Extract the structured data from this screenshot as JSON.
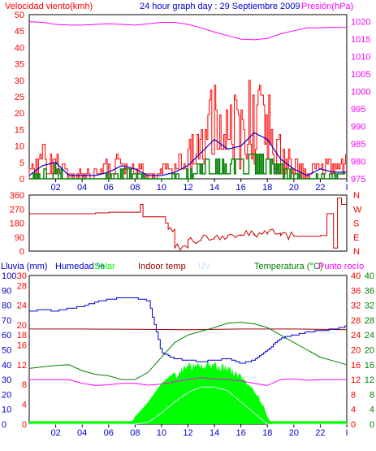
{
  "colors": {
    "wind": "#ff0000",
    "gust_avg": "#0000cc",
    "wind_green": "#008000",
    "pressure": "#ff00ff",
    "direction": "#cc0000",
    "humidity": "#0000cc",
    "solar": "#00ff00",
    "indoor": "#990000",
    "uv": "#c0e0ff",
    "temperature": "#008000",
    "dewpoint": "#ff00ff",
    "rain": "#0000ff",
    "grid": "#000000",
    "text_red": "#ff0000",
    "text_blue": "#0000cc",
    "text_green": "#008000",
    "text_magenta": "#ff00ff"
  },
  "chart_data": [
    {
      "type": "line",
      "panel": "wind_pressure",
      "header": {
        "left": "Velocidad viento(kmh)",
        "center": "24 hour graph day : 29 Septiembre 2009",
        "right": "Presión(hPa)"
      },
      "x_ticks": [
        "02",
        "04",
        "06",
        "08",
        "10",
        "12",
        "14",
        "16",
        "18",
        "20",
        "22",
        "I"
      ],
      "y_left_ticks": [
        "50",
        "45",
        "40",
        "35",
        "30",
        "25",
        "20",
        "15",
        "10",
        "5",
        "0"
      ],
      "y_right_ticks": [
        "1020",
        "1015",
        "1010",
        "1005",
        "1000",
        "995",
        "990",
        "985",
        "980",
        "975"
      ],
      "ylim_left": [
        0,
        50
      ],
      "ylim_right": [
        975,
        1022
      ],
      "xlim": [
        0,
        24
      ],
      "series": [
        {
          "key": "pressure",
          "axis": "right",
          "x": [
            0,
            1,
            2,
            3,
            4,
            5,
            6,
            7,
            8,
            9,
            10,
            11,
            12,
            13,
            14,
            15,
            16,
            17,
            18,
            19,
            20,
            21,
            22,
            23,
            24
          ],
          "values": [
            1020,
            1019.8,
            1019.2,
            1019,
            1019,
            1019.2,
            1019.4,
            1019.2,
            1019,
            1019.4,
            1019.8,
            1019.8,
            1019.2,
            1018.2,
            1017,
            1016,
            1015,
            1014.8,
            1015.2,
            1016.5,
            1017.4,
            1018.2,
            1018.2,
            1018.4,
            1018.3
          ]
        },
        {
          "key": "wind",
          "axis": "left",
          "x": [
            0,
            1,
            2,
            3,
            4,
            5,
            6,
            7,
            8,
            9,
            10,
            11,
            12,
            13,
            14,
            15,
            16,
            17,
            18,
            19,
            20,
            21,
            22,
            23,
            24
          ],
          "values": [
            3,
            9,
            7,
            2,
            2,
            2,
            5,
            7,
            5,
            3,
            3,
            5,
            9,
            17,
            27,
            19,
            21,
            26,
            22,
            10,
            6,
            2,
            6,
            5,
            7
          ]
        },
        {
          "key": "gust_avg",
          "axis": "left",
          "x": [
            0,
            1,
            2,
            3,
            4,
            5,
            6,
            7,
            8,
            9,
            10,
            11,
            12,
            13,
            14,
            15,
            16,
            17,
            18,
            19,
            20,
            21,
            22,
            23,
            24
          ],
          "values": [
            1,
            4,
            5,
            1,
            1,
            1,
            2,
            4,
            3,
            1,
            1,
            2,
            4,
            8,
            12,
            9,
            10,
            14,
            12,
            6,
            3,
            1,
            3,
            2,
            2
          ]
        },
        {
          "key": "wind_green",
          "axis": "left",
          "x": [
            0,
            1,
            2,
            3,
            4,
            5,
            6,
            7,
            8,
            9,
            10,
            11,
            12,
            13,
            14,
            15,
            16,
            17,
            18,
            19,
            20,
            21,
            22,
            23,
            24
          ],
          "values": [
            0,
            3,
            4,
            0,
            0,
            0,
            1,
            3,
            2,
            0,
            0,
            1,
            3,
            5,
            6,
            5,
            6,
            8,
            6,
            4,
            2,
            0,
            2,
            1,
            2
          ]
        }
      ]
    },
    {
      "type": "line",
      "panel": "wind_direction",
      "y_ticks": [
        "360",
        "270",
        "180",
        "90",
        "0"
      ],
      "y_right_labels": [
        "N",
        "W",
        "S",
        "E",
        "N"
      ],
      "ylim": [
        0,
        360
      ],
      "xlim": [
        0,
        24
      ],
      "series": [
        {
          "key": "direction",
          "x": [
            0,
            5,
            6,
            7,
            8.2,
            8.4,
            8.6,
            9,
            10,
            10.3,
            10.5,
            11,
            12,
            13,
            14,
            15,
            16,
            17,
            18,
            19,
            20,
            21,
            22,
            22.5,
            23,
            23.3,
            23.6,
            24
          ],
          "values": [
            240,
            245,
            250,
            250,
            250,
            300,
            220,
            220,
            220,
            180,
            140,
            20,
            70,
            80,
            90,
            100,
            105,
            110,
            115,
            100,
            95,
            95,
            100,
            240,
            20,
            340,
            300,
            300
          ]
        }
      ]
    },
    {
      "type": "line",
      "panel": "temperature_humidity",
      "header": {
        "rain": "Lluvia (mm)",
        "humidity": "Humedad %",
        "solar": "Solar",
        "indoor": "Indoor temp",
        "uv": "UV",
        "temperature": "Temperatura (°C)",
        "dewpoint": "Punto rocío"
      },
      "x_ticks": [
        "02",
        "04",
        "06",
        "08",
        "10",
        "12",
        "14",
        "16",
        "18",
        "20",
        "22",
        "I"
      ],
      "y_rain_ticks": [
        "30",
        "28",
        "24",
        "20",
        "18",
        "16",
        "12",
        "8",
        "4",
        "0"
      ],
      "y_hum_ticks": [
        "100",
        "90",
        "80",
        "70",
        "60",
        "50",
        "40",
        "30",
        "20",
        "10",
        "0"
      ],
      "y_ind_ticks": [
        "40",
        "36",
        "32",
        "28",
        "24",
        "20",
        "16",
        "12",
        "8",
        "4",
        "0"
      ],
      "y_temp_ticks": [
        "40",
        "36",
        "32",
        "28",
        "24",
        "20",
        "16",
        "12",
        "8",
        "4",
        "0"
      ],
      "ylim_humidity": [
        0,
        100
      ],
      "ylim_temp": [
        0,
        40
      ],
      "xlim": [
        0,
        24
      ],
      "series": [
        {
          "key": "humidity",
          "axis": "humidity",
          "x": [
            0,
            1,
            2,
            3,
            4,
            5,
            6,
            7,
            8,
            9,
            10,
            11,
            12,
            13,
            14,
            15,
            16,
            17,
            18,
            19,
            20,
            21,
            22,
            23,
            24
          ],
          "values": [
            76,
            77,
            76,
            78,
            79,
            82,
            84,
            85,
            85,
            83,
            48,
            44,
            43,
            42,
            43,
            44,
            41,
            43,
            50,
            58,
            60,
            62,
            63,
            64,
            66
          ]
        },
        {
          "key": "temperature",
          "axis": "temp",
          "x": [
            0,
            1,
            2,
            3,
            4,
            5,
            6,
            7,
            8,
            9,
            10,
            11,
            12,
            13,
            14,
            15,
            16,
            17,
            18,
            19,
            20,
            21,
            22,
            23,
            24
          ],
          "values": [
            15,
            15.4,
            15.8,
            16,
            14.4,
            13.4,
            13,
            12,
            12,
            14,
            18,
            22,
            24,
            25,
            26,
            27.2,
            27.4,
            27,
            26,
            24,
            22,
            20,
            18,
            17,
            16
          ]
        },
        {
          "key": "dewpoint",
          "axis": "temp",
          "x": [
            0,
            1,
            2,
            3,
            4,
            5,
            6,
            7,
            8,
            9,
            10,
            11,
            12,
            13,
            14,
            15,
            16,
            17,
            18,
            19,
            20,
            21,
            22,
            23,
            24
          ],
          "values": [
            12,
            12,
            12,
            12,
            11,
            10.4,
            10.6,
            11,
            11,
            10.5,
            10.8,
            11.4,
            12,
            12.5,
            12.2,
            12,
            11.6,
            11,
            10.4,
            12,
            12.2,
            11.8,
            12,
            12,
            12
          ]
        },
        {
          "key": "indoor",
          "axis": "temp",
          "x": [
            0,
            4,
            8,
            12,
            16,
            20,
            24
          ],
          "values": [
            25.6,
            25.6,
            25.5,
            25.4,
            25.6,
            25.6,
            25.4
          ]
        },
        {
          "key": "uv",
          "axis": "temp",
          "x": [
            0,
            8,
            9,
            10,
            11,
            12,
            13,
            14,
            15,
            16,
            17,
            18,
            24
          ],
          "values": [
            0,
            0,
            0.5,
            3,
            6,
            8.5,
            10,
            10,
            9,
            6,
            3,
            0,
            0
          ]
        },
        {
          "key": "solar",
          "axis": "temp",
          "x": [
            0,
            7.8,
            8,
            9,
            10,
            11,
            12,
            13,
            14,
            15,
            16,
            17,
            17.6,
            18,
            18.2,
            24
          ],
          "values": [
            0.8,
            0.8,
            2,
            6,
            11,
            14,
            16.5,
            17,
            17,
            16,
            14,
            10,
            6,
            2,
            0.8,
            0.8
          ]
        }
      ]
    }
  ]
}
